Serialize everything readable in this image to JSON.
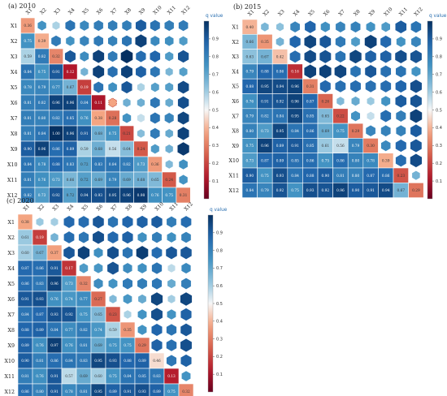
{
  "chart_data": [
    {
      "type": "heatmap",
      "title": "(a) 2010",
      "legend_title": "q value",
      "labels": [
        "X1",
        "X2",
        "X3",
        "X4",
        "X5",
        "X6",
        "X7",
        "X8",
        "X9",
        "X10",
        "X11",
        "X12"
      ],
      "colorbar_ticks": [
        "0.1",
        "0.2",
        "0.3",
        "0.4",
        "0.5",
        "0.6",
        "0.7",
        "0.8",
        "0.9"
      ],
      "color_range": [
        0.0,
        1.0
      ],
      "lower": [
        [
          0.36
        ],
        [
          0.75,
          0.39
        ],
        [
          0.59,
          0.82,
          0.32
        ],
        [
          0.84,
          0.75,
          0.91,
          0.12
        ],
        [
          0.78,
          0.79,
          0.77,
          0.67,
          0.19
        ],
        [
          0.81,
          0.82,
          0.96,
          0.96,
          0.84,
          0.11
        ],
        [
          0.81,
          0.8,
          0.82,
          0.85,
          0.76,
          0.38,
          0.28
        ],
        [
          0.81,
          0.84,
          1.0,
          0.96,
          0.91,
          0.68,
          0.75,
          0.21
        ],
        [
          0.9,
          0.96,
          0.86,
          0.89,
          0.59,
          0.68,
          0.56,
          0.64,
          0.24
        ],
        [
          0.84,
          0.78,
          0.88,
          0.83,
          0.72,
          0.83,
          0.84,
          0.82,
          0.73,
          0.36
        ],
        [
          0.81,
          0.76,
          0.73,
          0.66,
          0.72,
          0.69,
          0.79,
          0.69,
          0.68,
          0.65,
          0.24
        ],
        [
          0.82,
          0.73,
          0.92,
          0.72,
          0.94,
          0.93,
          0.95,
          0.96,
          0.98,
          0.76,
          0.75,
          0.31
        ]
      ]
    },
    {
      "type": "heatmap",
      "title": "(b) 2015",
      "legend_title": "q value",
      "labels": [
        "X1",
        "X2",
        "X3",
        "X4",
        "X5",
        "X6",
        "X7",
        "X8",
        "X9",
        "X10",
        "X11",
        "X12"
      ],
      "colorbar_ticks": [
        "0.1",
        "0.2",
        "0.3",
        "0.4",
        "0.5",
        "0.6",
        "0.7",
        "0.8",
        "0.9"
      ],
      "color_range": [
        0.0,
        1.0
      ],
      "lower": [
        [
          0.4
        ],
        [
          0.66,
          0.35
        ],
        [
          0.63,
          0.67,
          0.42
        ],
        [
          0.79,
          0.88,
          0.86,
          0.16
        ],
        [
          0.88,
          0.95,
          0.94,
          0.96,
          0.31
        ],
        [
          0.76,
          0.91,
          0.92,
          0.96,
          0.87,
          0.26
        ],
        [
          0.79,
          0.82,
          0.84,
          0.95,
          0.85,
          0.65,
          0.22
        ],
        [
          0.8,
          0.73,
          0.95,
          0.84,
          0.86,
          0.69,
          0.75,
          0.29
        ],
        [
          0.75,
          0.96,
          0.89,
          0.91,
          0.85,
          0.61,
          0.56,
          0.79,
          0.3
        ],
        [
          0.73,
          0.87,
          0.89,
          0.85,
          0.86,
          0.75,
          0.86,
          0.8,
          0.78,
          0.39
        ],
        [
          0.9,
          0.75,
          0.93,
          0.84,
          0.88,
          0.9,
          0.81,
          0.8,
          0.87,
          0.86,
          0.23
        ],
        [
          0.84,
          0.79,
          0.92,
          0.75,
          0.93,
          0.92,
          0.96,
          0.9,
          0.91,
          0.94,
          0.67,
          0.29
        ]
      ]
    },
    {
      "type": "heatmap",
      "title": "(c) 2020",
      "legend_title": "q value",
      "labels": [
        "X1",
        "X2",
        "X3",
        "X4",
        "X5",
        "X6",
        "X7",
        "X8",
        "X9",
        "X10",
        "X11",
        "X12"
      ],
      "colorbar_ticks": [
        "0.1",
        "0.2",
        "0.3",
        "0.4",
        "0.5",
        "0.6",
        "0.7",
        "0.8",
        "0.9"
      ],
      "color_range": [
        0.0,
        1.0
      ],
      "lower": [
        [
          0.38
        ],
        [
          0.61,
          0.19
        ],
        [
          0.6,
          0.67,
          0.37
        ],
        [
          0.87,
          0.86,
          0.91,
          0.17
        ],
        [
          0.86,
          0.83,
          0.96,
          0.73,
          0.32
        ],
        [
          0.91,
          0.93,
          0.76,
          0.74,
          0.77,
          0.27
        ],
        [
          0.84,
          0.87,
          0.93,
          0.92,
          0.75,
          0.65,
          0.23
        ],
        [
          0.88,
          0.89,
          0.84,
          0.77,
          0.82,
          0.74,
          0.59,
          0.35
        ],
        [
          0.89,
          0.76,
          0.97,
          0.76,
          0.81,
          0.69,
          0.75,
          0.75,
          0.29
        ],
        [
          0.9,
          0.81,
          0.86,
          0.84,
          0.83,
          0.95,
          0.93,
          0.88,
          0.89,
          0.46
        ],
        [
          0.81,
          0.76,
          0.91,
          0.57,
          0.69,
          0.6,
          0.75,
          0.84,
          0.85,
          0.83,
          0.13
        ],
        [
          0.86,
          0.8,
          0.91,
          0.78,
          0.81,
          0.95,
          0.89,
          0.91,
          0.93,
          0.89,
          0.75,
          0.32
        ]
      ]
    }
  ]
}
